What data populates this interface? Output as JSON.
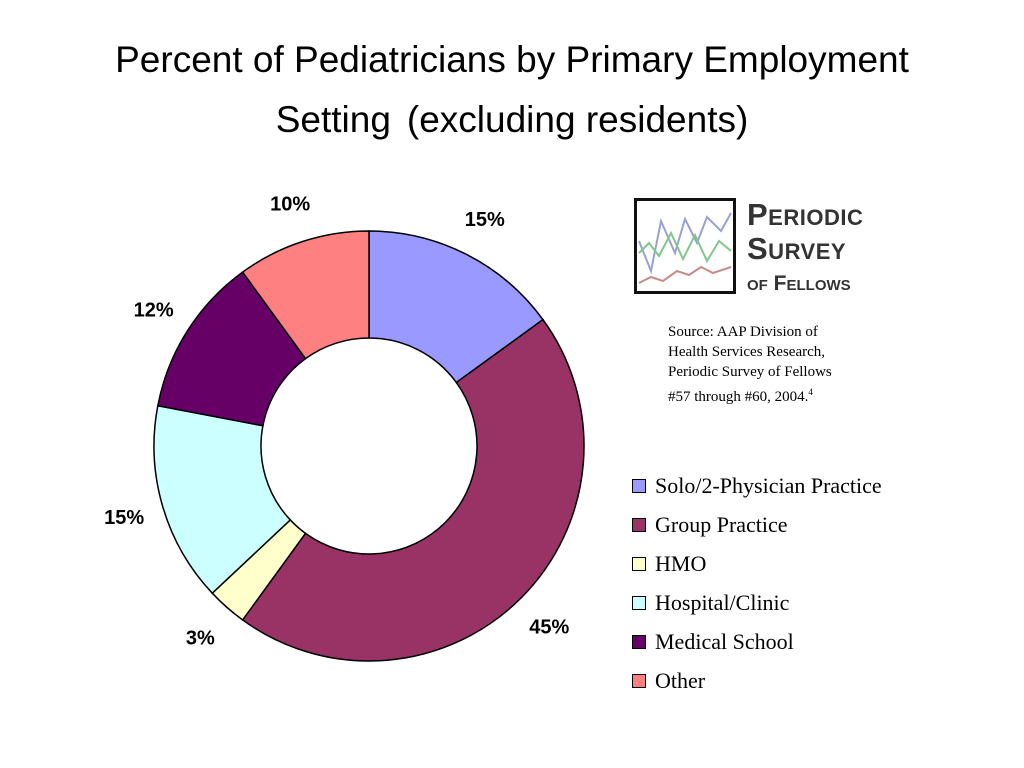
{
  "chart_data": {
    "type": "donut",
    "title_line1": "Percent of Pediatricians by Primary Employment",
    "title_line2a": "Setting",
    "title_line2b": "(excluding residents)",
    "categories": [
      "Solo/2-Physician Practice",
      "Group Practice",
      "HMO",
      "Hospital/Clinic",
      "Medical School",
      "Other"
    ],
    "values": [
      15,
      45,
      3,
      15,
      12,
      10
    ],
    "data_labels": [
      "15%",
      "45%",
      "3%",
      "15%",
      "12%",
      "10%"
    ],
    "colors": [
      "#9999ff",
      "#993366",
      "#ffffcc",
      "#ccffff",
      "#660066",
      "#ff8080"
    ],
    "legend_position": "right"
  },
  "logo": {
    "line1": "Periodic",
    "line2": "Survey",
    "line3": "of Fellows"
  },
  "source": {
    "line1": "Source: AAP Division of",
    "line2": "Health Services Research,",
    "line3": "Periodic Survey of Fellows",
    "line4": "#57 through #60, 2004.",
    "superscript": "4"
  }
}
